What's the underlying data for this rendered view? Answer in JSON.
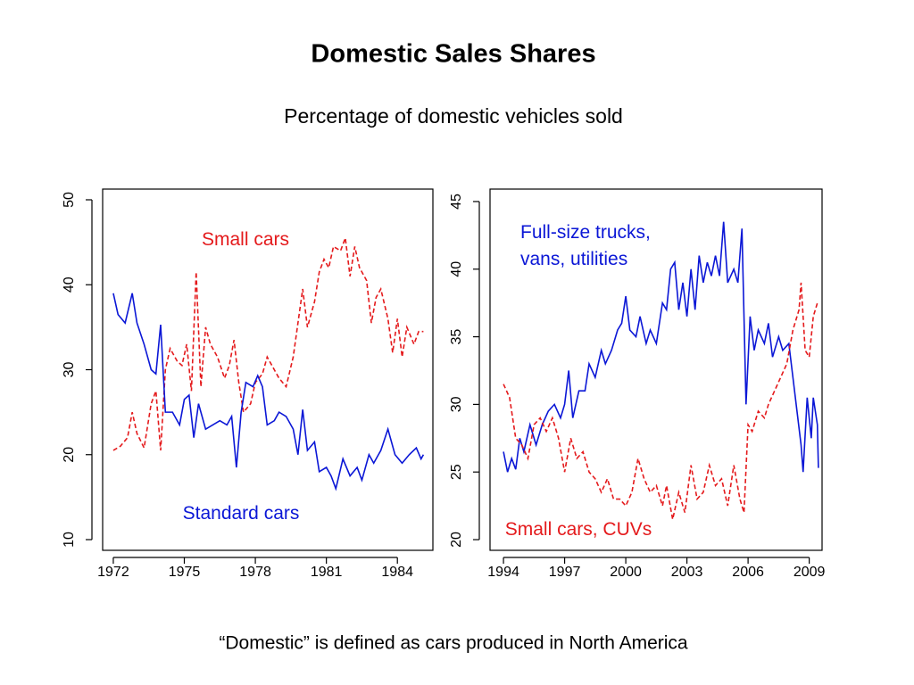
{
  "title": "Domestic Sales Shares",
  "subtitle": "Percentage of domestic vehicles sold",
  "note": "“Domestic” is defined as cars produced in North America",
  "chart_data": [
    {
      "type": "line",
      "xlim": [
        1971.55,
        1985.5
      ],
      "xticks": [
        1972,
        1975,
        1978,
        1981,
        1984
      ],
      "ylim": [
        8.74,
        51.26
      ],
      "yticks": [
        10,
        20,
        30,
        40,
        50
      ],
      "series": [
        {
          "name": "Small cars",
          "color": "#e41a1c",
          "line_style": "dashed",
          "x": [
            1972.0,
            1972.3,
            1972.6,
            1972.8,
            1973.0,
            1973.3,
            1973.6,
            1973.8,
            1974.0,
            1974.2,
            1974.4,
            1974.7,
            1974.9,
            1975.1,
            1975.3,
            1975.5,
            1975.7,
            1975.9,
            1976.1,
            1976.4,
            1976.7,
            1976.9,
            1977.1,
            1977.3,
            1977.5,
            1977.8,
            1978.0,
            1978.3,
            1978.5,
            1978.8,
            1979.0,
            1979.3,
            1979.6,
            1979.9,
            1980.0,
            1980.2,
            1980.5,
            1980.7,
            1980.9,
            1981.1,
            1981.3,
            1981.6,
            1981.8,
            1982.0,
            1982.2,
            1982.4,
            1982.7,
            1982.9,
            1983.1,
            1983.3,
            1983.6,
            1983.8,
            1984.0,
            1984.2,
            1984.4,
            1984.7,
            1984.9,
            1985.1
          ],
          "values": [
            20.5,
            21,
            22,
            25,
            22.5,
            20.8,
            26,
            27.5,
            20.5,
            30,
            32.5,
            31,
            30.5,
            33,
            27.5,
            41.5,
            28,
            35,
            33,
            31.5,
            29,
            30.5,
            33.5,
            28.5,
            25,
            26,
            28.5,
            29.5,
            31.5,
            30,
            29,
            28,
            31.5,
            37.5,
            39.5,
            35,
            38,
            41.5,
            43,
            42,
            44.5,
            44,
            45.5,
            41,
            44.5,
            42,
            40.5,
            35.5,
            38.5,
            39.5,
            36,
            32,
            36,
            31.5,
            35,
            33,
            34.5,
            34.5
          ]
        },
        {
          "name": "Standard cars",
          "color": "#0b17d6",
          "line_style": "solid",
          "x": [
            1972.0,
            1972.2,
            1972.5,
            1972.8,
            1973.0,
            1973.3,
            1973.6,
            1973.8,
            1974.0,
            1974.2,
            1974.5,
            1974.8,
            1975.0,
            1975.2,
            1975.4,
            1975.6,
            1975.9,
            1976.2,
            1976.5,
            1976.8,
            1977.0,
            1977.2,
            1977.4,
            1977.6,
            1977.9,
            1978.1,
            1978.3,
            1978.5,
            1978.8,
            1979.0,
            1979.3,
            1979.6,
            1979.8,
            1980.0,
            1980.2,
            1980.5,
            1980.7,
            1981.0,
            1981.2,
            1981.4,
            1981.7,
            1982.0,
            1982.3,
            1982.5,
            1982.8,
            1983.0,
            1983.3,
            1983.6,
            1983.9,
            1984.2,
            1984.5,
            1984.8,
            1985.0,
            1985.1
          ],
          "values": [
            39,
            36.5,
            35.5,
            39,
            35.5,
            33,
            30,
            29.5,
            35.3,
            25,
            25,
            23.5,
            26.5,
            27,
            22,
            26,
            23,
            23.5,
            24,
            23.5,
            24.5,
            18.5,
            25,
            28.5,
            28,
            29.3,
            28,
            23.5,
            24,
            25,
            24.5,
            23,
            20,
            25.3,
            20.5,
            21.5,
            18,
            18.5,
            17.5,
            16,
            19.5,
            17.5,
            18.5,
            17,
            20,
            19,
            20.5,
            23,
            20,
            19,
            20,
            20.8,
            19.5,
            20
          ]
        }
      ]
    },
    {
      "type": "line",
      "xlim": [
        1993.34,
        2009.63
      ],
      "xticks": [
        1994,
        1997,
        2000,
        2003,
        2006,
        2009
      ],
      "ylim": [
        19.21,
        45.92
      ],
      "yticks": [
        20,
        25,
        30,
        35,
        40,
        45
      ],
      "series": [
        {
          "name": "Full-size trucks, vans, utilities",
          "color": "#0b17d6",
          "line_style": "solid",
          "x": [
            1994.0,
            1994.2,
            1994.4,
            1994.6,
            1994.8,
            1995.0,
            1995.3,
            1995.6,
            1995.9,
            1996.2,
            1996.5,
            1996.8,
            1997.0,
            1997.2,
            1997.4,
            1997.7,
            1998.0,
            1998.2,
            1998.5,
            1998.8,
            1999.0,
            1999.3,
            1999.6,
            1999.8,
            2000.0,
            2000.2,
            2000.5,
            2000.7,
            2001.0,
            2001.2,
            2001.5,
            2001.8,
            2002.0,
            2002.2,
            2002.4,
            2002.6,
            2002.8,
            2003.0,
            2003.2,
            2003.4,
            2003.6,
            2003.8,
            2004.0,
            2004.2,
            2004.4,
            2004.6,
            2004.8,
            2005.0,
            2005.3,
            2005.5,
            2005.7,
            2005.9,
            2006.1,
            2006.3,
            2006.5,
            2006.8,
            2007.0,
            2007.2,
            2007.5,
            2007.7,
            2008.0,
            2008.2,
            2008.4,
            2008.6,
            2008.7,
            2008.9,
            2009.1,
            2009.2,
            2009.4,
            2009.45
          ],
          "values": [
            26.5,
            25,
            26,
            25.2,
            27.5,
            26.5,
            28.5,
            27,
            28.5,
            29.5,
            30,
            29,
            30,
            32.5,
            29,
            31,
            31,
            33,
            32,
            34,
            33,
            34,
            35.5,
            36,
            38,
            35.5,
            35,
            36.5,
            34.5,
            35.5,
            34.5,
            37.5,
            37,
            40,
            40.5,
            37,
            39,
            36.5,
            40,
            37,
            41,
            39,
            40.5,
            39.5,
            41,
            39.5,
            43.5,
            39,
            40,
            39,
            43,
            30,
            36.5,
            34,
            35.5,
            34.5,
            36,
            33.5,
            35,
            34,
            34.5,
            32,
            29.5,
            27,
            25,
            30.5,
            27.5,
            30.5,
            28.5,
            25.3
          ]
        },
        {
          "name": "Small cars, CUVs",
          "color": "#e41a1c",
          "line_style": "dashed",
          "x": [
            1994.0,
            1994.3,
            1994.6,
            1994.9,
            1995.2,
            1995.5,
            1995.8,
            1996.1,
            1996.4,
            1996.7,
            1997.0,
            1997.3,
            1997.6,
            1997.9,
            1998.2,
            1998.5,
            1998.8,
            1999.1,
            1999.4,
            1999.7,
            2000.0,
            2000.3,
            2000.6,
            2000.9,
            2001.2,
            2001.5,
            2001.8,
            2002.0,
            2002.3,
            2002.6,
            2002.9,
            2003.2,
            2003.5,
            2003.8,
            2004.1,
            2004.4,
            2004.7,
            2005.0,
            2005.3,
            2005.6,
            2005.8,
            2006.0,
            2006.2,
            2006.5,
            2006.8,
            2007.0,
            2007.3,
            2007.6,
            2007.9,
            2008.2,
            2008.5,
            2008.6,
            2008.8,
            2009.0,
            2009.2,
            2009.4
          ],
          "values": [
            31.5,
            30.5,
            27.5,
            27,
            26,
            28.5,
            29,
            28,
            29,
            27.5,
            25,
            27.5,
            26,
            26.5,
            25,
            24.5,
            23.5,
            24.5,
            23,
            23,
            22.5,
            23.5,
            26,
            24.5,
            23.5,
            24,
            22.5,
            24,
            21.5,
            23.5,
            22,
            25.5,
            23,
            23.5,
            25.5,
            24,
            24.5,
            22.5,
            25.5,
            23,
            22,
            28.5,
            28,
            29.5,
            29,
            30,
            31,
            32,
            33,
            35.5,
            37,
            39,
            34,
            33.5,
            36.5,
            37.5
          ]
        }
      ]
    }
  ]
}
